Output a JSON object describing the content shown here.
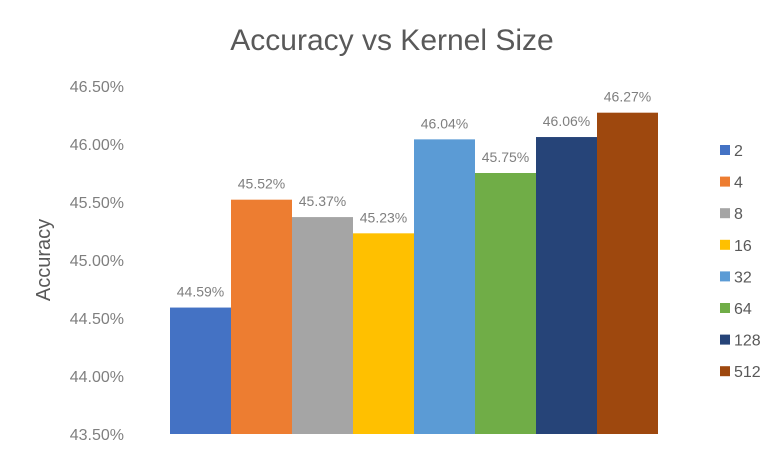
{
  "chart_data": {
    "type": "bar",
    "title": "Accuracy vs Kernel Size",
    "ylabel": "Accuracy",
    "xlabel": "",
    "ylim": [
      43.5,
      46.5
    ],
    "y_ticks": [
      "46.50%",
      "46.00%",
      "45.50%",
      "45.00%",
      "44.50%",
      "44.00%",
      "43.50%"
    ],
    "y_tick_values": [
      46.5,
      46.0,
      45.5,
      45.0,
      44.5,
      44.0,
      43.5
    ],
    "grid": false,
    "legend_position": "right",
    "series": [
      {
        "name": "2",
        "value": 44.59,
        "label": "44.59%",
        "color": "#4472C4"
      },
      {
        "name": "4",
        "value": 45.52,
        "label": "45.52%",
        "color": "#ED7D31"
      },
      {
        "name": "8",
        "value": 45.37,
        "label": "45.37%",
        "color": "#A5A5A5"
      },
      {
        "name": "16",
        "value": 45.23,
        "label": "45.23%",
        "color": "#FFC000"
      },
      {
        "name": "32",
        "value": 46.04,
        "label": "46.04%",
        "color": "#5B9BD5"
      },
      {
        "name": "64",
        "value": 45.75,
        "label": "45.75%",
        "color": "#70AD47"
      },
      {
        "name": "128",
        "value": 46.06,
        "label": "46.06%",
        "color": "#264478"
      },
      {
        "name": "512",
        "value": 46.27,
        "label": "46.27%",
        "color": "#9E480E"
      }
    ]
  }
}
